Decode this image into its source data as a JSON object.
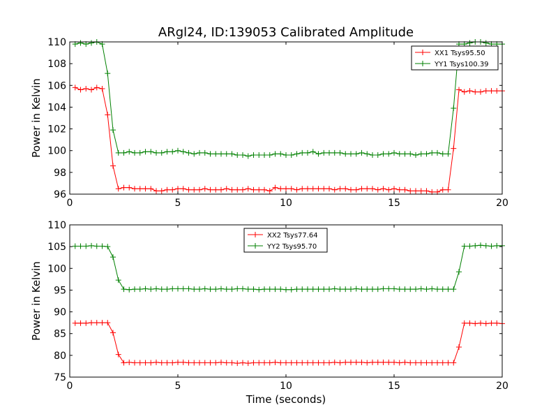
{
  "chart_data": [
    {
      "type": "line",
      "title": "ARgl24, ID:139053 Calibrated Amplitude",
      "xlabel": "",
      "ylabel": "Power in Kelvin",
      "xlim": [
        0,
        20
      ],
      "ylim": [
        96,
        110
      ],
      "xticks": [
        0,
        5,
        10,
        15,
        20
      ],
      "yticks": [
        96,
        98,
        100,
        102,
        104,
        106,
        108,
        110
      ],
      "legend": "top-right",
      "series": [
        {
          "name": "XX1 Tsys95.50",
          "color": "#ff0000",
          "x": [
            0.25,
            0.5,
            0.75,
            1.0,
            1.25,
            1.5,
            1.75,
            2.0,
            2.25,
            2.5,
            2.75,
            3.0,
            3.25,
            3.5,
            3.75,
            4.0,
            4.25,
            4.5,
            4.75,
            5.0,
            5.25,
            5.5,
            5.75,
            6.0,
            6.25,
            6.5,
            6.75,
            7.0,
            7.25,
            7.5,
            7.75,
            8.0,
            8.25,
            8.5,
            8.75,
            9.0,
            9.25,
            9.5,
            9.75,
            10.0,
            10.25,
            10.5,
            10.75,
            11.0,
            11.25,
            11.5,
            11.75,
            12.0,
            12.25,
            12.5,
            12.75,
            13.0,
            13.25,
            13.5,
            13.75,
            14.0,
            14.25,
            14.5,
            14.75,
            15.0,
            15.25,
            15.5,
            15.75,
            16.0,
            16.25,
            16.5,
            16.75,
            17.0,
            17.25,
            17.5,
            17.75,
            18.0,
            18.25,
            18.5,
            18.75,
            19.0,
            19.25,
            19.5,
            19.75,
            20.0
          ],
          "y": [
            105.8,
            105.6,
            105.7,
            105.6,
            105.8,
            105.7,
            103.3,
            98.6,
            96.5,
            96.6,
            96.6,
            96.5,
            96.5,
            96.5,
            96.5,
            96.3,
            96.3,
            96.4,
            96.4,
            96.5,
            96.5,
            96.4,
            96.4,
            96.4,
            96.5,
            96.4,
            96.4,
            96.4,
            96.5,
            96.4,
            96.4,
            96.4,
            96.5,
            96.4,
            96.4,
            96.4,
            96.3,
            96.6,
            96.5,
            96.5,
            96.5,
            96.4,
            96.5,
            96.5,
            96.5,
            96.5,
            96.5,
            96.5,
            96.4,
            96.5,
            96.5,
            96.4,
            96.4,
            96.5,
            96.5,
            96.5,
            96.4,
            96.5,
            96.4,
            96.5,
            96.4,
            96.4,
            96.3,
            96.3,
            96.3,
            96.3,
            96.2,
            96.2,
            96.4,
            96.4,
            100.2,
            105.6,
            105.4,
            105.5,
            105.4,
            105.4,
            105.5,
            105.5,
            105.5,
            105.5
          ]
        },
        {
          "name": "YY1 Tsys100.39",
          "color": "#008000",
          "x": [
            0.25,
            0.5,
            0.75,
            1.0,
            1.25,
            1.5,
            1.75,
            2.0,
            2.25,
            2.5,
            2.75,
            3.0,
            3.25,
            3.5,
            3.75,
            4.0,
            4.25,
            4.5,
            4.75,
            5.0,
            5.25,
            5.5,
            5.75,
            6.0,
            6.25,
            6.5,
            6.75,
            7.0,
            7.25,
            7.5,
            7.75,
            8.0,
            8.25,
            8.5,
            8.75,
            9.0,
            9.25,
            9.5,
            9.75,
            10.0,
            10.25,
            10.5,
            10.75,
            11.0,
            11.25,
            11.5,
            11.75,
            12.0,
            12.25,
            12.5,
            12.75,
            13.0,
            13.25,
            13.5,
            13.75,
            14.0,
            14.25,
            14.5,
            14.75,
            15.0,
            15.25,
            15.5,
            15.75,
            16.0,
            16.25,
            16.5,
            16.75,
            17.0,
            17.25,
            17.5,
            17.75,
            18.0,
            18.25,
            18.5,
            18.75,
            19.0,
            19.25,
            19.5,
            19.75,
            20.0
          ],
          "y": [
            109.8,
            109.9,
            109.8,
            109.9,
            110.0,
            109.8,
            107.1,
            101.9,
            99.8,
            99.8,
            99.9,
            99.8,
            99.8,
            99.9,
            99.9,
            99.8,
            99.8,
            99.9,
            99.9,
            100.0,
            99.9,
            99.8,
            99.7,
            99.8,
            99.8,
            99.7,
            99.7,
            99.7,
            99.7,
            99.7,
            99.6,
            99.6,
            99.5,
            99.6,
            99.6,
            99.6,
            99.6,
            99.7,
            99.7,
            99.6,
            99.6,
            99.7,
            99.8,
            99.8,
            99.9,
            99.7,
            99.8,
            99.8,
            99.8,
            99.8,
            99.7,
            99.7,
            99.7,
            99.8,
            99.7,
            99.6,
            99.6,
            99.7,
            99.7,
            99.8,
            99.7,
            99.7,
            99.7,
            99.6,
            99.7,
            99.7,
            99.8,
            99.8,
            99.7,
            99.7,
            103.9,
            109.8,
            109.8,
            109.9,
            110.0,
            110.0,
            109.9,
            109.8,
            109.8,
            109.8
          ]
        }
      ]
    },
    {
      "type": "line",
      "title": "",
      "xlabel": "Time (seconds)",
      "ylabel": "Power in Kelvin",
      "xlim": [
        0,
        20
      ],
      "ylim": [
        75,
        110
      ],
      "xticks": [
        0,
        5,
        10,
        15,
        20
      ],
      "yticks": [
        75,
        80,
        85,
        90,
        95,
        100,
        105,
        110
      ],
      "legend": "top-center",
      "series": [
        {
          "name": "XX2 Tsys77.64",
          "color": "#ff0000",
          "x": [
            0.25,
            0.5,
            0.75,
            1.0,
            1.25,
            1.5,
            1.75,
            2.0,
            2.25,
            2.5,
            2.75,
            3.0,
            3.25,
            3.5,
            3.75,
            4.0,
            4.25,
            4.5,
            4.75,
            5.0,
            5.25,
            5.5,
            5.75,
            6.0,
            6.25,
            6.5,
            6.75,
            7.0,
            7.25,
            7.5,
            7.75,
            8.0,
            8.25,
            8.5,
            8.75,
            9.0,
            9.25,
            9.5,
            9.75,
            10.0,
            10.25,
            10.5,
            10.75,
            11.0,
            11.25,
            11.5,
            11.75,
            12.0,
            12.25,
            12.5,
            12.75,
            13.0,
            13.25,
            13.5,
            13.75,
            14.0,
            14.25,
            14.5,
            14.75,
            15.0,
            15.25,
            15.5,
            15.75,
            16.0,
            16.25,
            16.5,
            16.75,
            17.0,
            17.25,
            17.5,
            17.75,
            18.0,
            18.25,
            18.5,
            18.75,
            19.0,
            19.25,
            19.5,
            19.75,
            20.0
          ],
          "y": [
            87.4,
            87.4,
            87.4,
            87.5,
            87.5,
            87.5,
            87.5,
            85.2,
            80.2,
            78.3,
            78.4,
            78.3,
            78.3,
            78.3,
            78.3,
            78.4,
            78.3,
            78.3,
            78.3,
            78.4,
            78.4,
            78.3,
            78.3,
            78.3,
            78.3,
            78.3,
            78.3,
            78.4,
            78.3,
            78.3,
            78.2,
            78.3,
            78.2,
            78.3,
            78.3,
            78.3,
            78.3,
            78.4,
            78.3,
            78.3,
            78.3,
            78.3,
            78.3,
            78.3,
            78.3,
            78.3,
            78.3,
            78.3,
            78.4,
            78.3,
            78.4,
            78.4,
            78.4,
            78.4,
            78.3,
            78.4,
            78.4,
            78.4,
            78.4,
            78.4,
            78.3,
            78.4,
            78.3,
            78.3,
            78.3,
            78.3,
            78.3,
            78.3,
            78.3,
            78.3,
            78.3,
            81.9,
            87.4,
            87.4,
            87.3,
            87.4,
            87.3,
            87.4,
            87.4,
            87.3
          ]
        },
        {
          "name": "YY2 Tsys95.70",
          "color": "#008000",
          "x": [
            0.25,
            0.5,
            0.75,
            1.0,
            1.25,
            1.5,
            1.75,
            2.0,
            2.25,
            2.5,
            2.75,
            3.0,
            3.25,
            3.5,
            3.75,
            4.0,
            4.25,
            4.5,
            4.75,
            5.0,
            5.25,
            5.5,
            5.75,
            6.0,
            6.25,
            6.5,
            6.75,
            7.0,
            7.25,
            7.5,
            7.75,
            8.0,
            8.25,
            8.5,
            8.75,
            9.0,
            9.25,
            9.5,
            9.75,
            10.0,
            10.25,
            10.5,
            10.75,
            11.0,
            11.25,
            11.5,
            11.75,
            12.0,
            12.25,
            12.5,
            12.75,
            13.0,
            13.25,
            13.5,
            13.75,
            14.0,
            14.25,
            14.5,
            14.75,
            15.0,
            15.25,
            15.5,
            15.75,
            16.0,
            16.25,
            16.5,
            16.75,
            17.0,
            17.25,
            17.5,
            17.75,
            18.0,
            18.25,
            18.5,
            18.75,
            19.0,
            19.25,
            19.5,
            19.75,
            20.0
          ],
          "y": [
            105.1,
            105.1,
            105.1,
            105.2,
            105.1,
            105.1,
            105.0,
            102.6,
            97.3,
            95.2,
            95.1,
            95.2,
            95.2,
            95.3,
            95.2,
            95.3,
            95.2,
            95.2,
            95.3,
            95.3,
            95.3,
            95.3,
            95.2,
            95.2,
            95.3,
            95.2,
            95.2,
            95.3,
            95.2,
            95.2,
            95.3,
            95.3,
            95.2,
            95.2,
            95.1,
            95.2,
            95.2,
            95.2,
            95.2,
            95.1,
            95.1,
            95.2,
            95.2,
            95.2,
            95.2,
            95.2,
            95.2,
            95.2,
            95.3,
            95.2,
            95.2,
            95.2,
            95.3,
            95.2,
            95.2,
            95.2,
            95.2,
            95.3,
            95.3,
            95.3,
            95.2,
            95.2,
            95.2,
            95.2,
            95.3,
            95.2,
            95.3,
            95.2,
            95.2,
            95.2,
            95.2,
            99.2,
            105.1,
            105.1,
            105.2,
            105.3,
            105.2,
            105.1,
            105.2,
            105.2
          ]
        }
      ]
    }
  ]
}
